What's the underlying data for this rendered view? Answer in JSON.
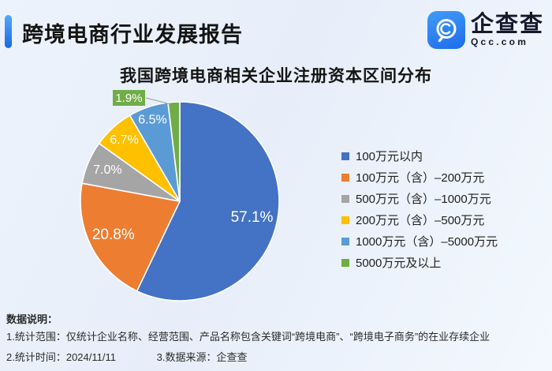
{
  "header": {
    "title": "跨境电商行业发展报告",
    "logo": {
      "brand": "企查查",
      "domain": "Qcc.com"
    }
  },
  "chart_data": {
    "type": "pie",
    "title": "我国跨境电商相关企业注册资本区间分布",
    "categories": [
      "100万元以内",
      "100万元（含）–200万元",
      "500万元（含）–1000万元",
      "200万元（含）–500万元",
      "1000万元（含）–5000万元",
      "5000万元及以上"
    ],
    "values": [
      57.1,
      20.8,
      7.0,
      6.7,
      6.5,
      1.9
    ],
    "labels": [
      "57.1%",
      "20.8%",
      "7.0%",
      "6.7%",
      "6.5%",
      "1.9%"
    ],
    "colors": [
      "#4472C4",
      "#ED7D31",
      "#A5A5A5",
      "#FFC000",
      "#5B9BD5",
      "#70AD47"
    ],
    "start_angle_deg": 0,
    "direction": "clockwise",
    "legend_position": "right",
    "label_color": "#ffffff"
  },
  "footer": {
    "heading": "数据说明：",
    "line1": "1.统计范围：仅统计企业名称、经营范围、产品名称包含关键词“跨境电商”、“跨境电子商务”的在业存续企业",
    "line2_left": "2.统计时间：2024/11/11",
    "line2_right": "3.数据来源：企查查"
  }
}
